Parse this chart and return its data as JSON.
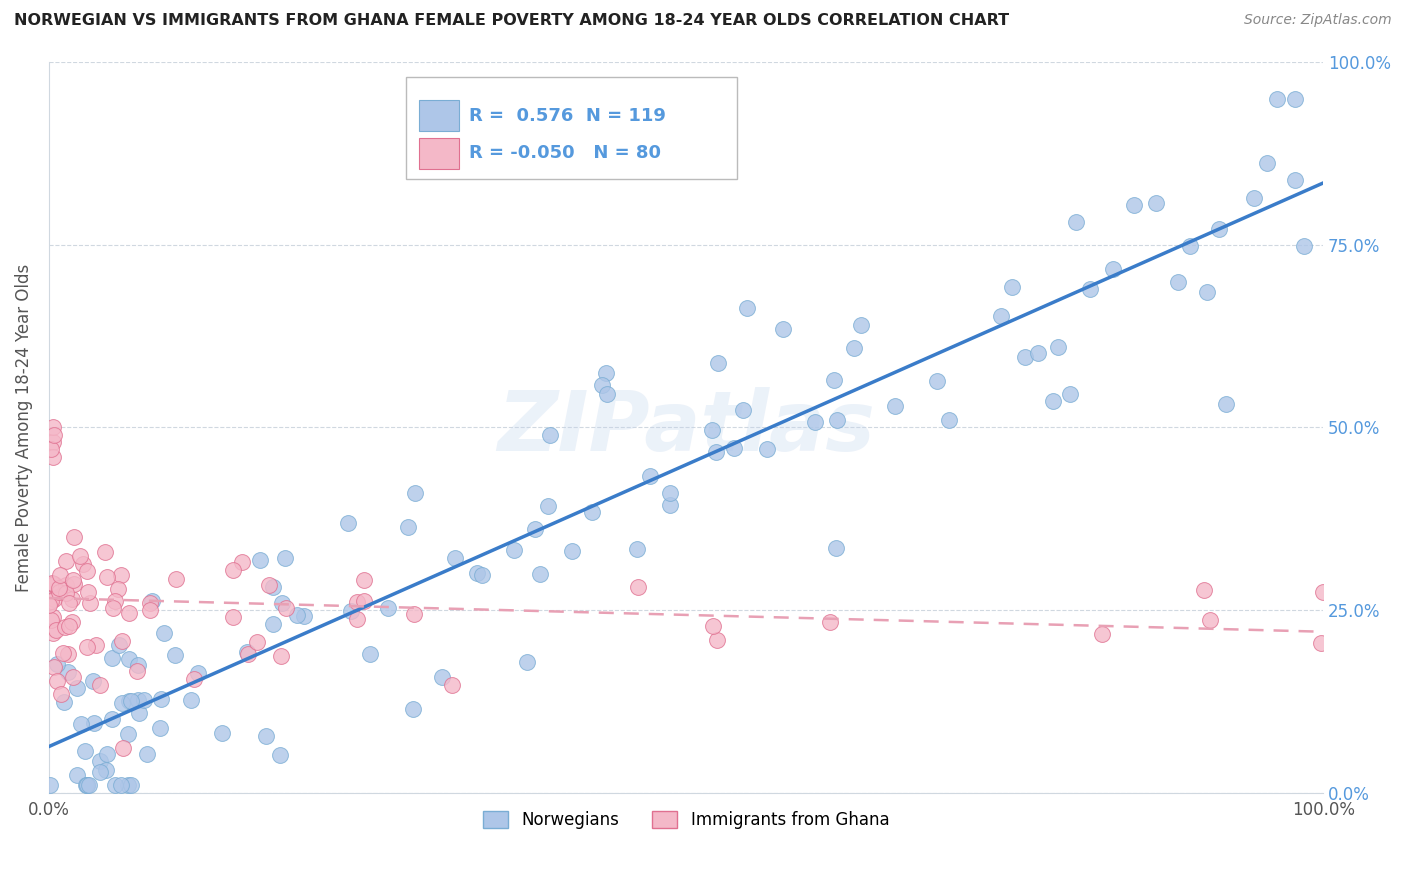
{
  "title": "NORWEGIAN VS IMMIGRANTS FROM GHANA FEMALE POVERTY AMONG 18-24 YEAR OLDS CORRELATION CHART",
  "source": "Source: ZipAtlas.com",
  "ylabel": "Female Poverty Among 18-24 Year Olds",
  "legend_norwegian": "Norwegians",
  "legend_ghana": "Immigrants from Ghana",
  "r_norwegian": "0.576",
  "n_norwegian": "119",
  "r_ghana": "-0.050",
  "n_ghana": "80",
  "norwegian_color": "#aec6e8",
  "norwegian_edge": "#7aadd4",
  "ghana_color": "#f4b8c8",
  "ghana_edge": "#e07090",
  "line_norwegian_color": "#3a7cc9",
  "line_ghana_color": "#e8a0b4",
  "watermark": "ZIPatlas",
  "bg_color": "#ffffff",
  "plot_bg": "#ffffff",
  "grid_color": "#d0d8e0",
  "right_tick_color": "#5599dd",
  "seed": 1234
}
